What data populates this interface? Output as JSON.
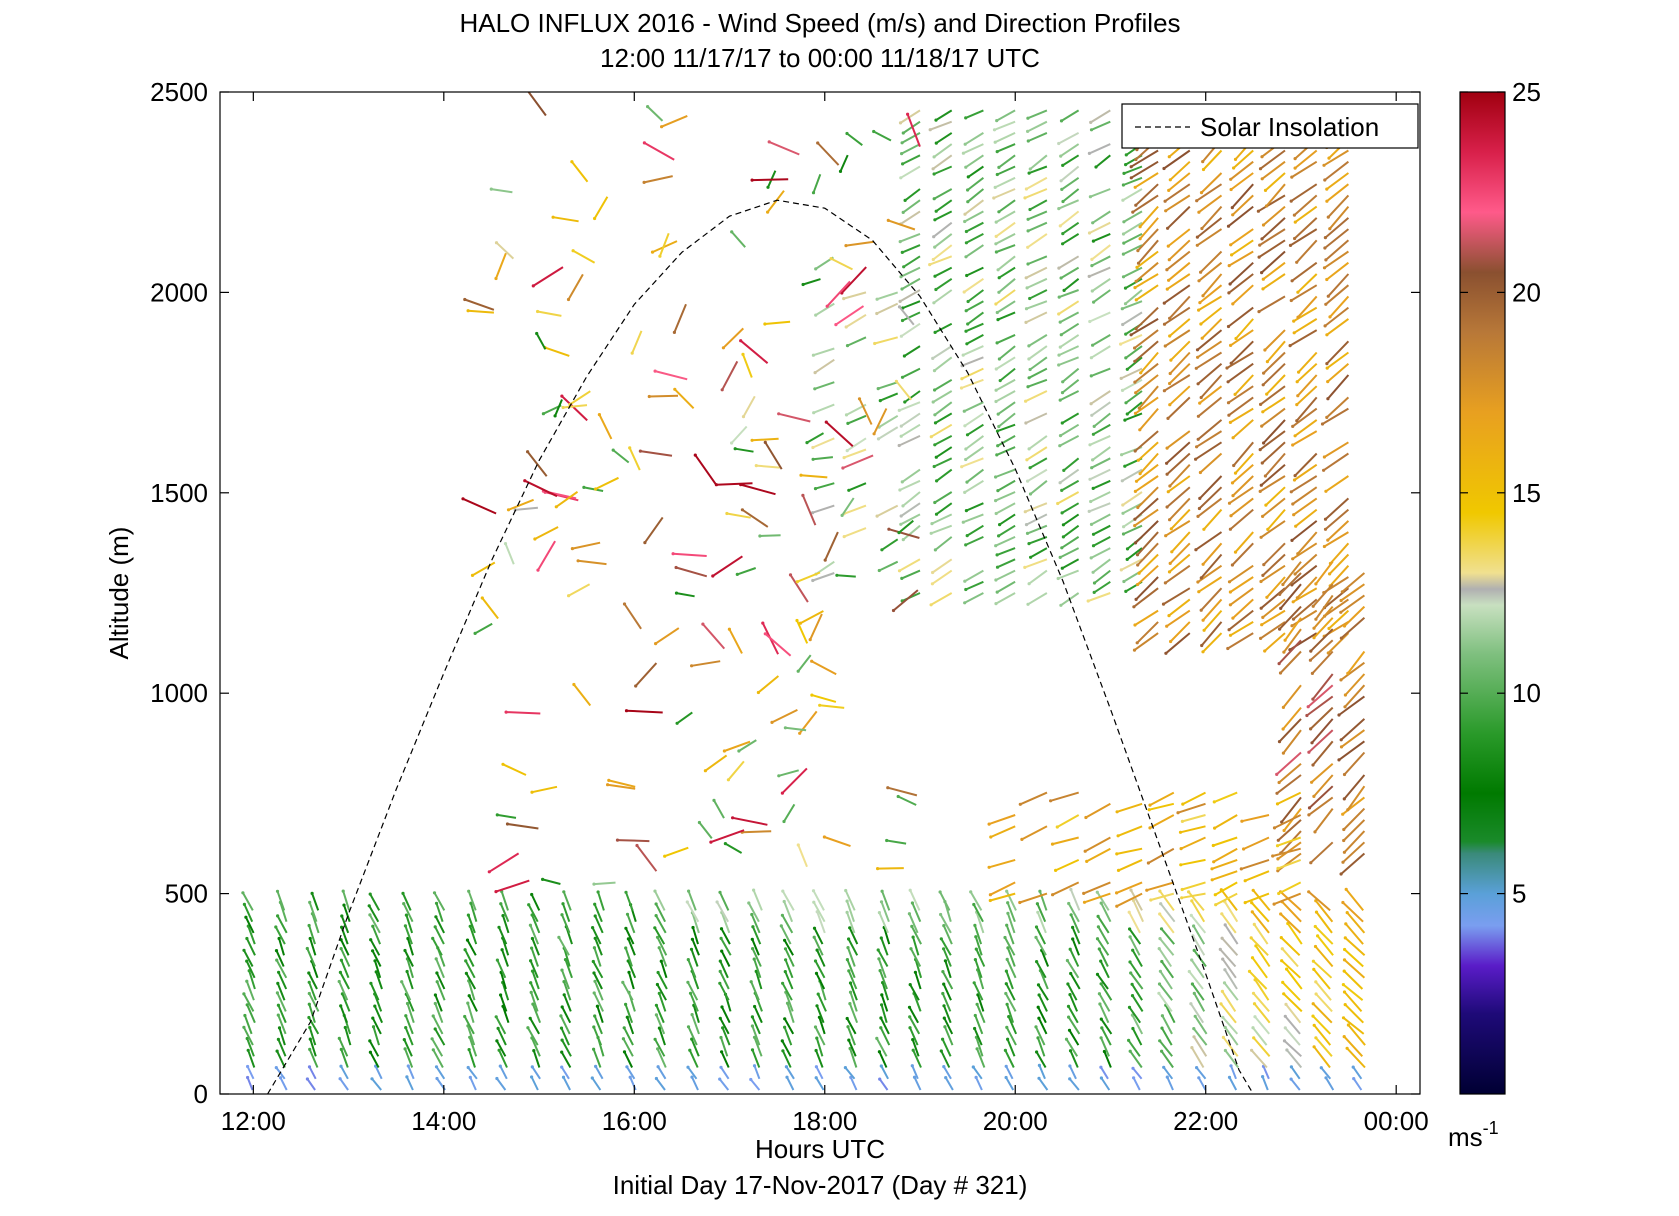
{
  "chart_data": {
    "type": "wind-barb-profile",
    "title": "HALO INFLUX 2016 - Wind Speed (m/s) and Direction Profiles",
    "subtitle": "12:00 11/17/17 to 00:00 11/18/17  UTC",
    "xlabel": "Hours UTC",
    "ylabel": "Altitude (m)",
    "footer": "Initial Day 17-Nov-2017 (Day # 321)",
    "xlim_hours": [
      11.65,
      24.25
    ],
    "ylim": [
      0,
      2500
    ],
    "x_ticks": [
      {
        "value": 12,
        "label": "12:00"
      },
      {
        "value": 14,
        "label": "14:00"
      },
      {
        "value": 16,
        "label": "16:00"
      },
      {
        "value": 18,
        "label": "18:00"
      },
      {
        "value": 20,
        "label": "20:00"
      },
      {
        "value": 22,
        "label": "22:00"
      },
      {
        "value": 24,
        "label": "00:00"
      }
    ],
    "y_ticks": [
      0,
      500,
      1000,
      1500,
      2000,
      2500
    ],
    "legend": {
      "position": "top-right",
      "entries": [
        {
          "label": "Solar Insolation",
          "style": "dashed",
          "color": "#000000"
        }
      ]
    },
    "colorbar": {
      "label_main": "ms",
      "label_exp": "-1",
      "range": [
        0,
        25
      ],
      "ticks": [
        5,
        10,
        15,
        20,
        25
      ],
      "stops": [
        {
          "v": 0,
          "c": "#000033"
        },
        {
          "v": 2,
          "c": "#1e0a78"
        },
        {
          "v": 3.2,
          "c": "#5a1cc8"
        },
        {
          "v": 4.2,
          "c": "#7a9ef0"
        },
        {
          "v": 5,
          "c": "#5aa0d8"
        },
        {
          "v": 6,
          "c": "#3a8a7a"
        },
        {
          "v": 6.3,
          "c": "#1a8a2a"
        },
        {
          "v": 7.5,
          "c": "#007a00"
        },
        {
          "v": 9,
          "c": "#2a9a2a"
        },
        {
          "v": 11,
          "c": "#80c080"
        },
        {
          "v": 12.2,
          "c": "#c8e0c0"
        },
        {
          "v": 12.6,
          "c": "#b0b0b0"
        },
        {
          "v": 13,
          "c": "#f0e090"
        },
        {
          "v": 14.5,
          "c": "#f0c800"
        },
        {
          "v": 17,
          "c": "#e8a020"
        },
        {
          "v": 19,
          "c": "#b87838"
        },
        {
          "v": 20.5,
          "c": "#8a5030"
        },
        {
          "v": 22,
          "c": "#ff5a8a"
        },
        {
          "v": 23.5,
          "c": "#d8204a"
        },
        {
          "v": 25,
          "c": "#a00010"
        }
      ]
    },
    "solar_insolation": {
      "style": "dashed",
      "points": [
        [
          12.15,
          0
        ],
        [
          12.6,
          180
        ],
        [
          13.0,
          450
        ],
        [
          13.5,
          760
        ],
        [
          14.0,
          1050
        ],
        [
          14.5,
          1330
        ],
        [
          15.0,
          1580
        ],
        [
          15.5,
          1790
        ],
        [
          16.0,
          1970
        ],
        [
          16.5,
          2100
        ],
        [
          17.0,
          2190
        ],
        [
          17.5,
          2230
        ],
        [
          18.0,
          2210
        ],
        [
          18.5,
          2130
        ],
        [
          19.0,
          1990
        ],
        [
          19.5,
          1800
        ],
        [
          20.0,
          1560
        ],
        [
          20.5,
          1280
        ],
        [
          21.0,
          960
        ],
        [
          21.5,
          630
        ],
        [
          22.0,
          300
        ],
        [
          22.35,
          60
        ],
        [
          22.5,
          0
        ]
      ]
    },
    "wind_fields": [
      {
        "hours": [
          12.0,
          24.0
        ],
        "alt": [
          0,
          470
        ],
        "speed_ms": 8.5,
        "direction_deg": 330,
        "note": "low-level northwesterly band, light-blue 4 m/s near surface"
      },
      {
        "hours": [
          20.0,
          22.6
        ],
        "alt": [
          500,
          750
        ],
        "speed_ms": 16,
        "direction_deg": 250
      },
      {
        "hours": [
          19.0,
          21.5
        ],
        "alt": [
          1250,
          2500
        ],
        "speed_ms": 11,
        "direction_deg": 240
      },
      {
        "hours": [
          21.5,
          23.6
        ],
        "alt": [
          1150,
          2500
        ],
        "speed_ms": 18,
        "direction_deg": 230
      },
      {
        "hours": [
          23.0,
          23.9
        ],
        "alt": [
          600,
          1350
        ],
        "speed_ms": 19,
        "direction_deg": 225
      },
      {
        "hours": [
          14.5,
          19.0
        ],
        "alt": [
          550,
          2500
        ],
        "speed_ms": 16,
        "direction_deg": 280,
        "note": "scattered sparse vectors"
      }
    ]
  }
}
